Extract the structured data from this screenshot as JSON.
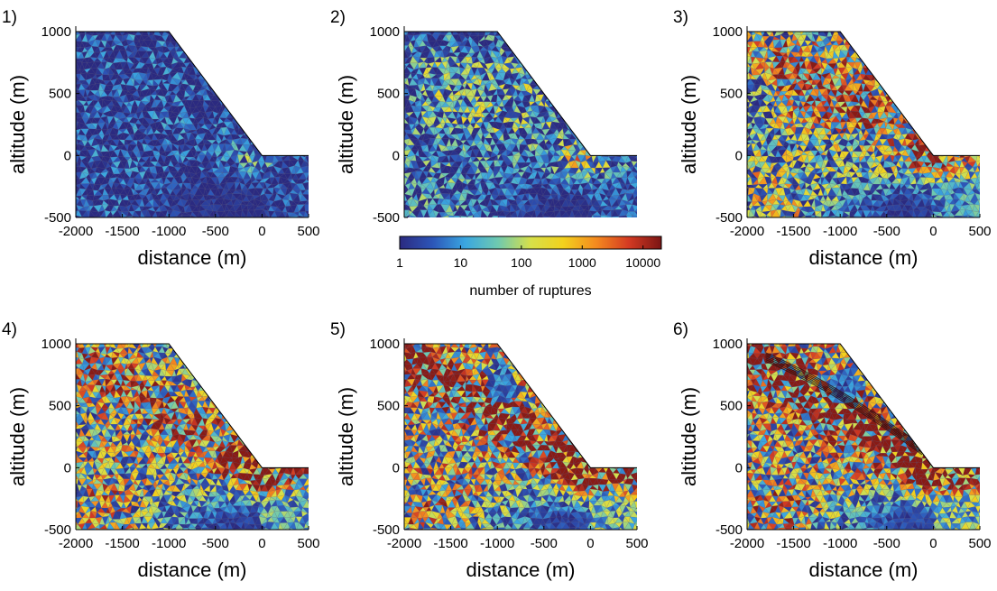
{
  "colors": {
    "scale": [
      "#2b2a80",
      "#2c55b8",
      "#3aa6e0",
      "#6ec9b0",
      "#d6e04a",
      "#f2d11d",
      "#f48a1f",
      "#d43a22",
      "#7a1514"
    ],
    "background_fill": "#34315f",
    "mesh_line": "#6d6b8a"
  },
  "chart_data": {
    "type": "heatmap",
    "x_ticks": [
      "-2000",
      "-1500",
      "-1000",
      "-500",
      "0",
      "500"
    ],
    "y_ticks": [
      "1000",
      "500",
      "0",
      "-500"
    ],
    "xlabel": "distance (m)",
    "ylabel": "altitude (m)",
    "xlim": [
      -2000,
      500
    ],
    "ylim": [
      -500,
      1000
    ],
    "log_color_scale": true,
    "color_range": [
      1,
      20000
    ],
    "colorbar": {
      "label": "number of ruptures",
      "ticks": [
        "1",
        "10",
        "100",
        "1000",
        "10000"
      ],
      "tick_values": [
        1,
        10,
        100,
        1000,
        10000
      ]
    },
    "slope_profile": {
      "x": [
        -2000,
        -1000,
        0,
        500
      ],
      "y": [
        1000,
        1000,
        0,
        0
      ]
    },
    "panels": [
      {
        "label": "1)",
        "stage": 1,
        "show_xaxis": true
      },
      {
        "label": "2)",
        "stage": 2,
        "show_xaxis": false
      },
      {
        "label": "3)",
        "stage": 3,
        "show_xaxis": true
      },
      {
        "label": "4)",
        "stage": 4,
        "show_xaxis": true
      },
      {
        "label": "5)",
        "stage": 5,
        "show_xaxis": true
      },
      {
        "label": "6)",
        "stage": 6,
        "show_xaxis": true
      }
    ]
  }
}
